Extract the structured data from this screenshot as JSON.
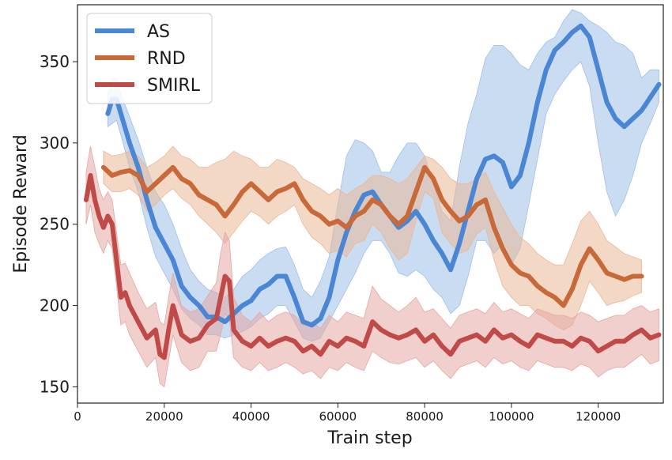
{
  "chart_data": {
    "type": "line",
    "title": "",
    "xlabel": "Train step",
    "ylabel": "Episode Reward",
    "xlim": [
      0,
      135000
    ],
    "ylim": [
      140,
      385
    ],
    "xticks": [
      0,
      20000,
      40000,
      60000,
      80000,
      100000,
      120000
    ],
    "xtick_labels": [
      "0",
      "20000",
      "40000",
      "60000",
      "80000",
      "100000",
      "120000"
    ],
    "yticks": [
      150,
      200,
      250,
      300,
      350
    ],
    "ytick_labels": [
      "150",
      "200",
      "250",
      "300",
      "350"
    ],
    "grid": false,
    "legend_position": "top-left",
    "series": [
      {
        "name": "AS",
        "color": "#4a86d4",
        "band_color": "#9fbfe8",
        "x": [
          7000,
          8000,
          9000,
          10000,
          12000,
          14000,
          16000,
          18000,
          20000,
          22000,
          24000,
          26000,
          28000,
          30000,
          32000,
          34000,
          36000,
          38000,
          40000,
          42000,
          44000,
          46000,
          48000,
          50000,
          52000,
          54000,
          56000,
          58000,
          60000,
          62000,
          64000,
          66000,
          68000,
          70000,
          72000,
          74000,
          76000,
          78000,
          80000,
          82000,
          84000,
          86000,
          88000,
          90000,
          92000,
          94000,
          96000,
          98000,
          100000,
          102000,
          104000,
          106000,
          108000,
          110000,
          112000,
          114000,
          116000,
          118000,
          120000,
          122000,
          124000,
          126000,
          128000,
          130000,
          132000,
          134000
        ],
        "y": [
          318,
          327,
          327,
          318,
          300,
          285,
          265,
          248,
          238,
          228,
          212,
          205,
          200,
          193,
          193,
          190,
          195,
          200,
          203,
          210,
          213,
          218,
          218,
          205,
          190,
          188,
          192,
          205,
          228,
          245,
          258,
          268,
          270,
          262,
          255,
          248,
          252,
          258,
          250,
          240,
          232,
          222,
          238,
          258,
          278,
          290,
          292,
          288,
          273,
          280,
          300,
          325,
          345,
          357,
          362,
          368,
          372,
          365,
          345,
          325,
          315,
          310,
          315,
          320,
          328,
          336
        ],
        "upper": [
          330,
          340,
          340,
          330,
          316,
          302,
          285,
          270,
          262,
          250,
          235,
          222,
          215,
          210,
          208,
          205,
          210,
          218,
          222,
          228,
          232,
          235,
          236,
          225,
          210,
          205,
          215,
          230,
          262,
          292,
          302,
          300,
          295,
          282,
          282,
          292,
          300,
          300,
          292,
          275,
          258,
          252,
          285,
          312,
          330,
          352,
          360,
          360,
          355,
          348,
          345,
          355,
          362,
          365,
          375,
          382,
          380,
          375,
          372,
          368,
          362,
          360,
          355,
          340,
          345,
          345
        ],
        "lower": [
          310,
          312,
          314,
          305,
          285,
          270,
          248,
          230,
          220,
          210,
          198,
          192,
          188,
          182,
          182,
          180,
          182,
          184,
          187,
          192,
          195,
          200,
          200,
          190,
          180,
          178,
          180,
          190,
          200,
          210,
          220,
          232,
          240,
          240,
          232,
          220,
          218,
          222,
          218,
          210,
          205,
          195,
          200,
          218,
          240,
          240,
          232,
          238,
          225,
          235,
          262,
          290,
          318,
          330,
          338,
          345,
          350,
          335,
          300,
          270,
          255,
          265,
          280,
          300,
          312,
          325
        ]
      },
      {
        "name": "RND",
        "color": "#c8693a",
        "band_color": "#e9b898",
        "x": [
          6000,
          8000,
          10000,
          12000,
          14000,
          16000,
          18000,
          20000,
          22000,
          24000,
          26000,
          28000,
          30000,
          32000,
          34000,
          36000,
          38000,
          40000,
          42000,
          44000,
          46000,
          48000,
          50000,
          52000,
          54000,
          56000,
          58000,
          60000,
          62000,
          64000,
          66000,
          68000,
          70000,
          72000,
          74000,
          76000,
          78000,
          80000,
          82000,
          84000,
          86000,
          88000,
          90000,
          92000,
          94000,
          96000,
          98000,
          100000,
          102000,
          104000,
          106000,
          108000,
          110000,
          112000,
          114000,
          116000,
          118000,
          120000,
          122000,
          124000,
          126000,
          128000,
          130000
        ],
        "y": [
          285,
          280,
          282,
          283,
          280,
          270,
          275,
          280,
          285,
          278,
          275,
          268,
          265,
          262,
          255,
          262,
          270,
          275,
          270,
          265,
          270,
          272,
          275,
          265,
          258,
          255,
          250,
          252,
          248,
          255,
          258,
          265,
          262,
          255,
          250,
          255,
          270,
          285,
          278,
          265,
          258,
          252,
          255,
          262,
          265,
          248,
          235,
          225,
          220,
          218,
          212,
          208,
          205,
          200,
          210,
          225,
          235,
          228,
          220,
          218,
          216,
          218,
          218
        ],
        "upper": [
          295,
          292,
          293,
          295,
          292,
          285,
          288,
          292,
          298,
          292,
          290,
          285,
          285,
          288,
          290,
          295,
          292,
          290,
          285,
          285,
          290,
          288,
          285,
          278,
          275,
          272,
          268,
          272,
          268,
          272,
          275,
          280,
          280,
          278,
          275,
          278,
          285,
          292,
          290,
          285,
          278,
          275,
          275,
          278,
          282,
          270,
          260,
          250,
          242,
          238,
          232,
          228,
          225,
          225,
          238,
          252,
          258,
          250,
          240,
          236,
          232,
          230,
          228
        ],
        "lower": [
          275,
          270,
          270,
          272,
          268,
          258,
          262,
          268,
          272,
          266,
          262,
          255,
          250,
          245,
          238,
          245,
          252,
          258,
          255,
          250,
          255,
          258,
          262,
          250,
          242,
          238,
          232,
          234,
          230,
          238,
          240,
          250,
          245,
          235,
          228,
          232,
          252,
          270,
          266,
          245,
          238,
          232,
          234,
          244,
          248,
          228,
          212,
          205,
          200,
          200,
          195,
          192,
          188,
          185,
          188,
          200,
          215,
          208,
          200,
          202,
          203,
          206,
          208
        ]
      },
      {
        "name": "SMIRL",
        "color": "#c04a48",
        "band_color": "#e3a7a4",
        "x": [
          2000,
          3000,
          4000,
          5000,
          6000,
          7000,
          8000,
          9000,
          10000,
          11000,
          12000,
          14000,
          16000,
          18000,
          19000,
          20000,
          21000,
          22000,
          24000,
          26000,
          28000,
          30000,
          32000,
          33000,
          34000,
          35000,
          36000,
          38000,
          40000,
          42000,
          44000,
          46000,
          48000,
          50000,
          52000,
          54000,
          56000,
          58000,
          60000,
          62000,
          64000,
          66000,
          68000,
          70000,
          72000,
          74000,
          76000,
          78000,
          80000,
          82000,
          84000,
          86000,
          88000,
          90000,
          92000,
          94000,
          96000,
          98000,
          100000,
          102000,
          104000,
          106000,
          108000,
          110000,
          112000,
          114000,
          116000,
          118000,
          120000,
          122000,
          124000,
          126000,
          128000,
          130000,
          132000,
          134000
        ],
        "y": [
          265,
          280,
          265,
          255,
          248,
          255,
          250,
          228,
          205,
          208,
          200,
          190,
          180,
          185,
          170,
          168,
          185,
          200,
          182,
          178,
          180,
          188,
          192,
          205,
          218,
          215,
          185,
          178,
          175,
          180,
          175,
          178,
          180,
          178,
          172,
          175,
          170,
          178,
          175,
          180,
          178,
          175,
          190,
          185,
          182,
          180,
          182,
          185,
          178,
          182,
          175,
          170,
          178,
          180,
          182,
          178,
          185,
          180,
          182,
          178,
          175,
          182,
          180,
          178,
          178,
          175,
          180,
          178,
          172,
          175,
          178,
          178,
          182,
          185,
          180,
          182
        ],
        "upper": [
          282,
          298,
          285,
          272,
          265,
          270,
          265,
          245,
          225,
          226,
          220,
          208,
          198,
          202,
          190,
          188,
          205,
          220,
          200,
          196,
          198,
          206,
          214,
          232,
          245,
          240,
          205,
          194,
          190,
          196,
          190,
          194,
          196,
          194,
          188,
          190,
          186,
          194,
          190,
          196,
          194,
          192,
          212,
          204,
          200,
          196,
          200,
          205,
          196,
          198,
          192,
          186,
          194,
          196,
          198,
          195,
          202,
          196,
          198,
          195,
          192,
          198,
          196,
          194,
          194,
          192,
          196,
          194,
          190,
          192,
          194,
          194,
          198,
          200,
          196,
          198
        ],
        "lower": [
          250,
          262,
          245,
          238,
          232,
          240,
          235,
          212,
          188,
          190,
          182,
          172,
          162,
          168,
          152,
          150,
          166,
          182,
          165,
          160,
          162,
          172,
          172,
          182,
          195,
          192,
          168,
          162,
          160,
          165,
          160,
          162,
          165,
          162,
          158,
          160,
          155,
          162,
          160,
          165,
          162,
          160,
          172,
          168,
          165,
          164,
          166,
          168,
          162,
          166,
          160,
          155,
          162,
          164,
          166,
          162,
          168,
          164,
          166,
          162,
          160,
          166,
          164,
          162,
          162,
          160,
          164,
          162,
          156,
          160,
          162,
          162,
          166,
          170,
          164,
          166
        ]
      }
    ]
  }
}
